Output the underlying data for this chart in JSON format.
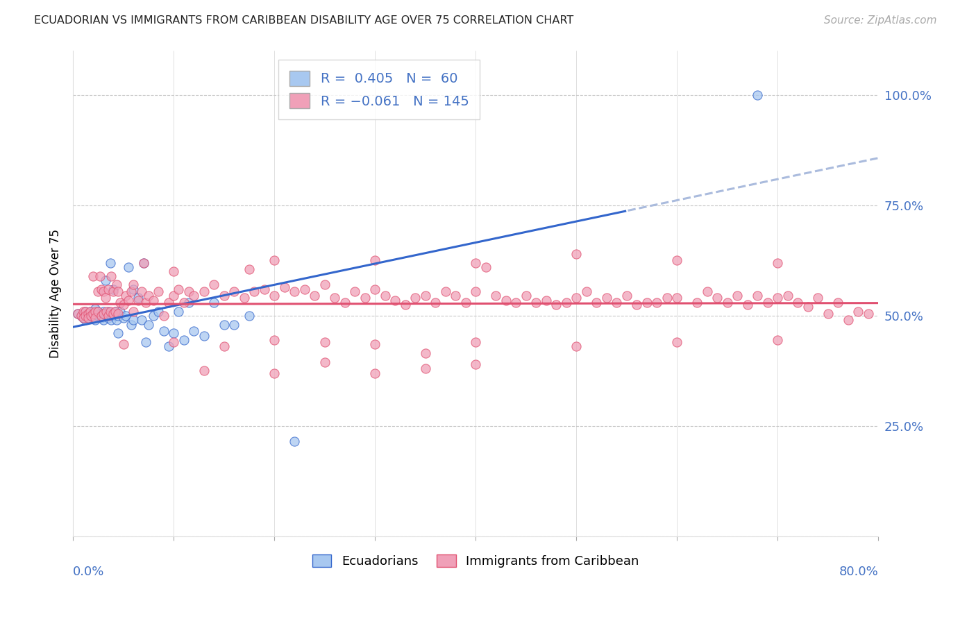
{
  "title": "ECUADORIAN VS IMMIGRANTS FROM CARIBBEAN DISABILITY AGE OVER 75 CORRELATION CHART",
  "source": "Source: ZipAtlas.com",
  "ylabel": "Disability Age Over 75",
  "xmin": 0.0,
  "xmax": 0.8,
  "ymin": 0.0,
  "ymax": 1.1,
  "color_blue": "#A8C8F0",
  "color_blue_line": "#3366CC",
  "color_pink": "#F0A0B8",
  "color_pink_line": "#E05070",
  "color_axis": "#4472C4",
  "color_title": "#222222",
  "grid_color": "#C8C8C8",
  "scatter_blue_x": [
    0.005,
    0.008,
    0.01,
    0.012,
    0.012,
    0.015,
    0.015,
    0.017,
    0.018,
    0.02,
    0.02,
    0.022,
    0.022,
    0.025,
    0.025,
    0.027,
    0.028,
    0.03,
    0.03,
    0.03,
    0.032,
    0.033,
    0.035,
    0.035,
    0.037,
    0.038,
    0.04,
    0.04,
    0.042,
    0.043,
    0.045,
    0.045,
    0.047,
    0.05,
    0.052,
    0.055,
    0.058,
    0.06,
    0.06,
    0.065,
    0.068,
    0.07,
    0.072,
    0.075,
    0.08,
    0.085,
    0.09,
    0.095,
    0.1,
    0.105,
    0.11,
    0.115,
    0.12,
    0.13,
    0.14,
    0.15,
    0.16,
    0.175,
    0.22,
    0.68
  ],
  "scatter_blue_y": [
    0.505,
    0.5,
    0.495,
    0.51,
    0.49,
    0.505,
    0.495,
    0.51,
    0.5,
    0.505,
    0.5,
    0.515,
    0.49,
    0.5,
    0.51,
    0.505,
    0.495,
    0.51,
    0.505,
    0.49,
    0.58,
    0.5,
    0.51,
    0.495,
    0.62,
    0.49,
    0.56,
    0.5,
    0.51,
    0.49,
    0.5,
    0.46,
    0.51,
    0.495,
    0.5,
    0.61,
    0.48,
    0.56,
    0.49,
    0.54,
    0.49,
    0.62,
    0.44,
    0.48,
    0.5,
    0.51,
    0.465,
    0.43,
    0.46,
    0.51,
    0.445,
    0.53,
    0.465,
    0.455,
    0.53,
    0.48,
    0.48,
    0.5,
    0.215,
    1.0
  ],
  "scatter_pink_x": [
    0.005,
    0.008,
    0.01,
    0.01,
    0.012,
    0.012,
    0.015,
    0.015,
    0.017,
    0.018,
    0.02,
    0.02,
    0.022,
    0.022,
    0.025,
    0.025,
    0.027,
    0.028,
    0.028,
    0.03,
    0.03,
    0.032,
    0.033,
    0.035,
    0.035,
    0.037,
    0.038,
    0.04,
    0.04,
    0.042,
    0.043,
    0.045,
    0.045,
    0.047,
    0.05,
    0.052,
    0.055,
    0.058,
    0.06,
    0.06,
    0.065,
    0.068,
    0.07,
    0.072,
    0.075,
    0.08,
    0.085,
    0.09,
    0.095,
    0.1,
    0.105,
    0.11,
    0.115,
    0.12,
    0.13,
    0.14,
    0.15,
    0.16,
    0.17,
    0.175,
    0.18,
    0.19,
    0.2,
    0.21,
    0.22,
    0.23,
    0.24,
    0.25,
    0.26,
    0.27,
    0.28,
    0.29,
    0.3,
    0.31,
    0.32,
    0.33,
    0.34,
    0.35,
    0.36,
    0.37,
    0.38,
    0.39,
    0.4,
    0.41,
    0.42,
    0.43,
    0.44,
    0.45,
    0.46,
    0.47,
    0.48,
    0.49,
    0.5,
    0.51,
    0.52,
    0.53,
    0.54,
    0.55,
    0.56,
    0.57,
    0.58,
    0.59,
    0.6,
    0.62,
    0.63,
    0.64,
    0.65,
    0.66,
    0.67,
    0.68,
    0.69,
    0.7,
    0.71,
    0.72,
    0.73,
    0.74,
    0.75,
    0.76,
    0.77,
    0.78,
    0.79,
    0.25,
    0.35,
    0.4,
    0.05,
    0.1,
    0.15,
    0.2,
    0.3,
    0.4,
    0.5,
    0.6,
    0.7,
    0.1,
    0.2,
    0.3,
    0.4,
    0.5,
    0.6,
    0.7,
    0.13,
    0.2,
    0.25,
    0.3,
    0.35
  ],
  "scatter_pink_y": [
    0.505,
    0.5,
    0.51,
    0.495,
    0.51,
    0.5,
    0.505,
    0.495,
    0.51,
    0.5,
    0.59,
    0.505,
    0.51,
    0.495,
    0.555,
    0.51,
    0.59,
    0.5,
    0.56,
    0.555,
    0.505,
    0.54,
    0.51,
    0.56,
    0.5,
    0.51,
    0.59,
    0.505,
    0.555,
    0.51,
    0.57,
    0.555,
    0.505,
    0.53,
    0.525,
    0.545,
    0.535,
    0.555,
    0.51,
    0.57,
    0.535,
    0.555,
    0.62,
    0.53,
    0.545,
    0.535,
    0.555,
    0.5,
    0.53,
    0.545,
    0.56,
    0.53,
    0.555,
    0.545,
    0.555,
    0.57,
    0.545,
    0.555,
    0.54,
    0.605,
    0.555,
    0.56,
    0.545,
    0.565,
    0.555,
    0.56,
    0.545,
    0.57,
    0.54,
    0.53,
    0.555,
    0.54,
    0.56,
    0.545,
    0.535,
    0.525,
    0.54,
    0.545,
    0.53,
    0.555,
    0.545,
    0.53,
    0.555,
    0.61,
    0.545,
    0.535,
    0.53,
    0.545,
    0.53,
    0.535,
    0.525,
    0.53,
    0.54,
    0.555,
    0.53,
    0.54,
    0.53,
    0.545,
    0.525,
    0.53,
    0.53,
    0.54,
    0.54,
    0.53,
    0.555,
    0.54,
    0.53,
    0.545,
    0.525,
    0.545,
    0.53,
    0.54,
    0.545,
    0.53,
    0.52,
    0.54,
    0.505,
    0.53,
    0.49,
    0.51,
    0.505,
    0.44,
    0.415,
    0.39,
    0.435,
    0.44,
    0.43,
    0.445,
    0.435,
    0.44,
    0.43,
    0.44,
    0.445,
    0.6,
    0.625,
    0.625,
    0.62,
    0.64,
    0.625,
    0.62,
    0.375,
    0.37,
    0.395,
    0.37,
    0.38
  ]
}
